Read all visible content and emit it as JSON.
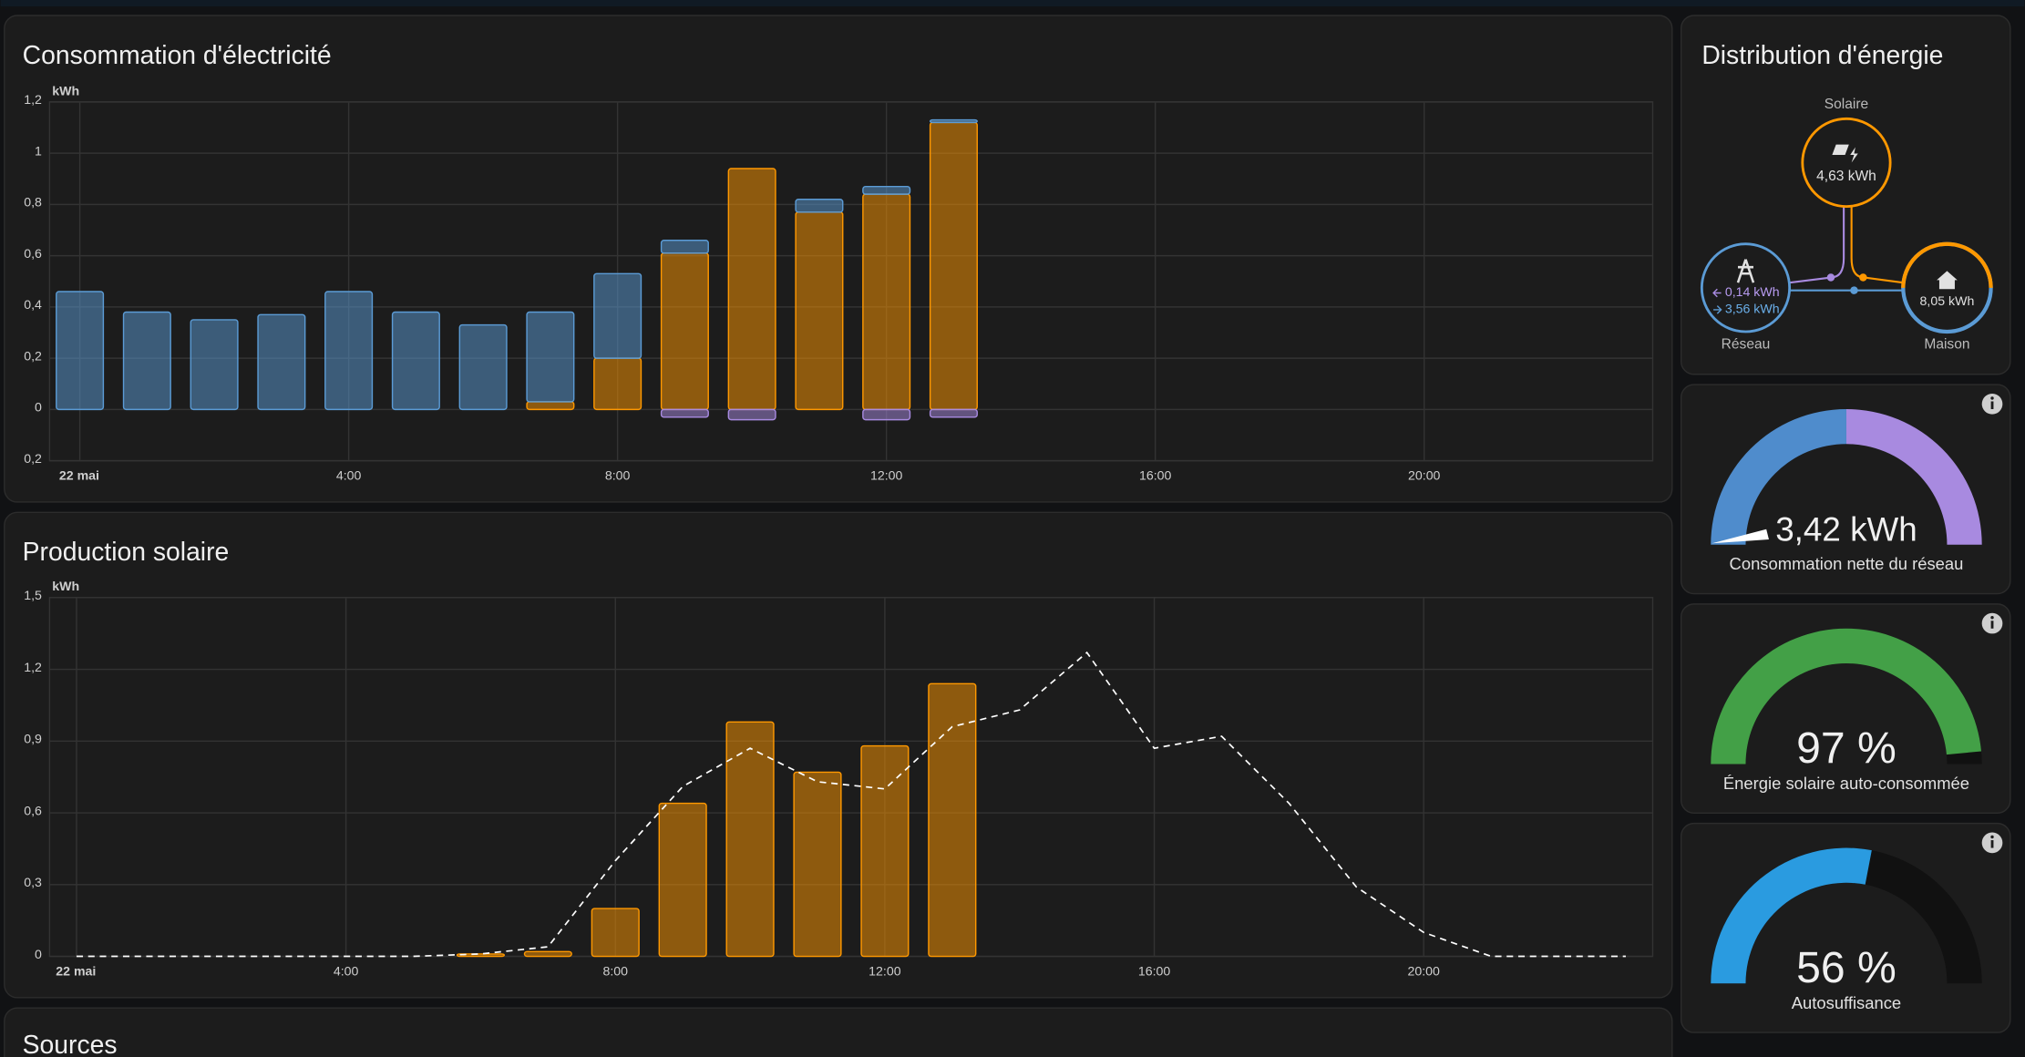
{
  "chart_data": [
    {
      "type": "bar",
      "title": "Consommation d'électricité",
      "unit": "kWh",
      "stacked": true,
      "grid": true,
      "x": [
        0,
        1,
        2,
        3,
        4,
        5,
        6,
        7,
        8,
        9,
        10,
        11,
        12,
        13
      ],
      "xlim": [
        -0.45,
        23.4
      ],
      "xticks": [
        {
          "value": 0,
          "label": "22 mai"
        },
        {
          "value": 4,
          "label": "4:00"
        },
        {
          "value": 8,
          "label": "8:00"
        },
        {
          "value": 12,
          "label": "12:00"
        },
        {
          "value": 16,
          "label": "16:00"
        },
        {
          "value": 20,
          "label": "20:00"
        }
      ],
      "ylim": [
        -0.2,
        1.2
      ],
      "yticks": [
        {
          "value": -0.2,
          "label": "0,2"
        },
        0,
        {
          "value": 0.2,
          "label": "0,2"
        },
        {
          "value": 0.4,
          "label": "0,4"
        },
        {
          "value": 0.6,
          "label": "0,6"
        },
        {
          "value": 0.8,
          "label": "0,8"
        },
        1,
        {
          "value": 1.2,
          "label": "1,2"
        }
      ],
      "series": [
        {
          "color": "#ff9800",
          "values": [
            0,
            0,
            0,
            0,
            0,
            0,
            0,
            0.03,
            0.2,
            0.61,
            0.94,
            0.77,
            0.84,
            1.12
          ]
        },
        {
          "color": "#5b9bd5",
          "values": [
            0.46,
            0.38,
            0.35,
            0.37,
            0.46,
            0.38,
            0.33,
            0.35,
            0.33,
            0.05,
            0,
            0.05,
            0.03,
            0.01
          ]
        },
        {
          "color": "#a88ae0",
          "values": [
            0,
            0,
            0,
            0,
            0,
            0,
            0,
            0,
            0,
            -0.03,
            -0.04,
            0,
            -0.04,
            -0.03
          ]
        }
      ]
    },
    {
      "type": "combo",
      "title": "Production solaire",
      "unit": "kWh",
      "grid": true,
      "xlim": [
        -0.4,
        23.4
      ],
      "xticks": [
        {
          "value": 0,
          "label": "22 mai"
        },
        {
          "value": 4,
          "label": "4:00"
        },
        {
          "value": 8,
          "label": "8:00"
        },
        {
          "value": 12,
          "label": "12:00"
        },
        {
          "value": 16,
          "label": "16:00"
        },
        {
          "value": 20,
          "label": "20:00"
        }
      ],
      "ylim": [
        0,
        1.5
      ],
      "yticks": [
        0,
        {
          "value": 0.3,
          "label": "0,3"
        },
        {
          "value": 0.6,
          "label": "0,6"
        },
        {
          "value": 0.9,
          "label": "0,9"
        },
        {
          "value": 1.2,
          "label": "1,2"
        },
        {
          "value": 1.5,
          "label": "1,5"
        }
      ],
      "series": [
        {
          "kind": "bar",
          "color": "#ff9800",
          "x": [
            6,
            7,
            8,
            9,
            10,
            11,
            12,
            13
          ],
          "values": [
            0.01,
            0.02,
            0.2,
            0.64,
            0.98,
            0.77,
            0.88,
            1.14
          ]
        },
        {
          "kind": "line",
          "dashed": true,
          "color": "#ffffff",
          "x": [
            0,
            1,
            2,
            3,
            4,
            5,
            6,
            7,
            8,
            9,
            10,
            11,
            12,
            13,
            14,
            15,
            16,
            17,
            18,
            19,
            20,
            21,
            22,
            23
          ],
          "values": [
            0,
            0,
            0,
            0,
            0,
            0,
            0.01,
            0.04,
            0.4,
            0.71,
            0.87,
            0.73,
            0.7,
            0.96,
            1.03,
            1.27,
            0.87,
            0.92,
            0.64,
            0.29,
            0.1,
            0,
            0,
            0
          ]
        }
      ]
    }
  ],
  "distribution": {
    "title": "Distribution d'énergie",
    "solar": {
      "label": "Solaire",
      "value": "4,63 kWh"
    },
    "grid": {
      "label": "Réseau",
      "returned": "0,14 kWh",
      "consumed": "3,56 kWh"
    },
    "home": {
      "label": "Maison",
      "value": "8,05 kWh"
    }
  },
  "gauges": [
    {
      "value_label": "3,42 kWh",
      "name": "Consommation nette du réseau"
    },
    {
      "value": 97,
      "value_label": "97 %",
      "name": "Énergie solaire auto-consommée",
      "range": [
        0,
        100
      ],
      "color": "#43a047"
    },
    {
      "value": 56,
      "value_label": "56 %",
      "name": "Autosuffisance",
      "range": [
        0,
        100
      ],
      "color": "#2a9be0"
    }
  ],
  "sources": {
    "title": "Sources"
  }
}
